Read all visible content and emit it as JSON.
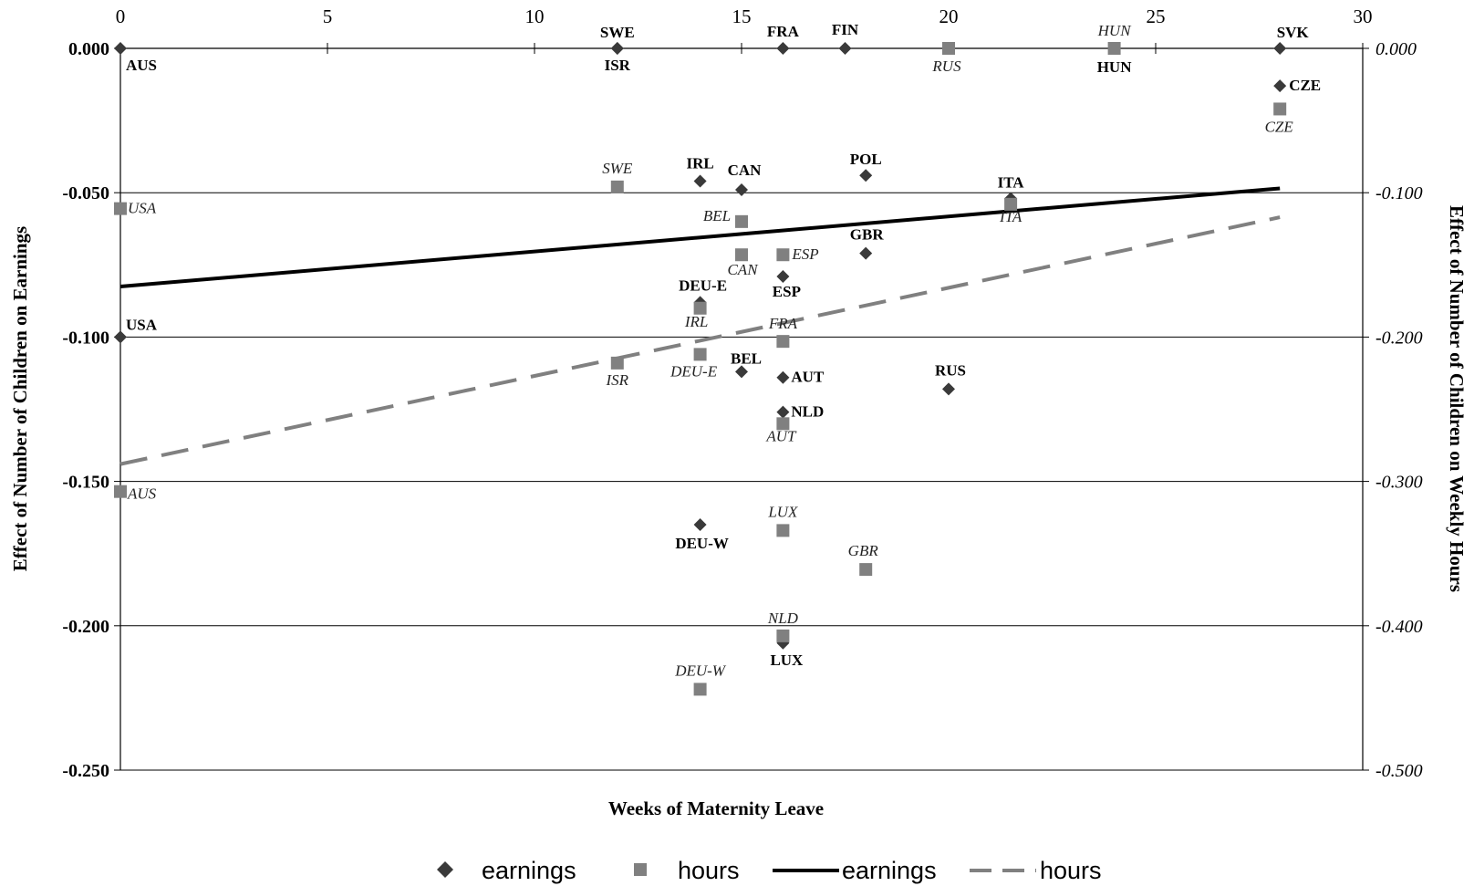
{
  "chart_data": {
    "type": "scatter",
    "xlabel": "Weeks of Maternity Leave",
    "ylabel_left": "Effect of Number of Children on Earnings",
    "ylabel_right": "Effect of Number of Children on Weekly Hours",
    "x_ticks": [
      "0",
      "5",
      "10",
      "15",
      "20",
      "25",
      "30"
    ],
    "y_left_ticks": [
      "0.000",
      "-0.050",
      "-0.100",
      "-0.150",
      "-0.200",
      "-0.250"
    ],
    "y_right_ticks": [
      "0.000",
      "-0.100",
      "-0.200",
      "-0.300",
      "-0.400",
      "-0.500"
    ],
    "xlim": [
      0,
      30
    ],
    "ylim_left": [
      -0.25,
      0
    ],
    "ylim_right": [
      -0.5,
      0
    ],
    "grid": "horizontal",
    "legend_position": "bottom",
    "series": [
      {
        "name": "earnings",
        "axis": "left",
        "marker": "diamond",
        "color": "#3a3a3a",
        "points": [
          {
            "label": "AUS",
            "x": 0,
            "y": 0.0
          },
          {
            "label": "USA",
            "x": 0,
            "y": -0.1
          },
          {
            "label": "SWE",
            "x": 12,
            "y": 0.0
          },
          {
            "label": "ISR",
            "x": 12,
            "y": 0.0
          },
          {
            "label": "FRA",
            "x": 16,
            "y": 0.0
          },
          {
            "label": "FIN",
            "x": 17.5,
            "y": 0.0
          },
          {
            "label": "HUN",
            "x": 24,
            "y": 0.0
          },
          {
            "label": "SVK",
            "x": 28,
            "y": 0.0
          },
          {
            "label": "CZE",
            "x": 28,
            "y": -0.013
          },
          {
            "label": "IRL",
            "x": 14,
            "y": -0.046
          },
          {
            "label": "CAN",
            "x": 15,
            "y": -0.049
          },
          {
            "label": "POL",
            "x": 18,
            "y": -0.044
          },
          {
            "label": "ITA",
            "x": 21.5,
            "y": -0.052
          },
          {
            "label": "GBR",
            "x": 18,
            "y": -0.071
          },
          {
            "label": "ESP",
            "x": 16,
            "y": -0.079
          },
          {
            "label": "DEU-E",
            "x": 14,
            "y": -0.088
          },
          {
            "label": "BEL",
            "x": 15,
            "y": -0.112
          },
          {
            "label": "AUT",
            "x": 16,
            "y": -0.114
          },
          {
            "label": "RUS",
            "x": 20,
            "y": -0.118
          },
          {
            "label": "NLD",
            "x": 16,
            "y": -0.126
          },
          {
            "label": "DEU-W",
            "x": 14,
            "y": -0.165
          },
          {
            "label": "LUX",
            "x": 16,
            "y": -0.206
          }
        ]
      },
      {
        "name": "hours",
        "axis": "right",
        "marker": "square",
        "color": "#808080",
        "points": [
          {
            "label": "USA",
            "x": 0,
            "y": -0.111
          },
          {
            "label": "AUS",
            "x": 0,
            "y": -0.307
          },
          {
            "label": "SWE",
            "x": 12,
            "y": -0.096
          },
          {
            "label": "ISR",
            "x": 12,
            "y": -0.218
          },
          {
            "label": "IRL",
            "x": 14,
            "y": -0.18
          },
          {
            "label": "DEU-E",
            "x": 14,
            "y": -0.212
          },
          {
            "label": "DEU-W",
            "x": 14,
            "y": -0.444
          },
          {
            "label": "BEL",
            "x": 15,
            "y": -0.12
          },
          {
            "label": "CAN",
            "x": 15,
            "y": -0.143
          },
          {
            "label": "ESP",
            "x": 16,
            "y": -0.143
          },
          {
            "label": "FRA",
            "x": 16,
            "y": -0.203
          },
          {
            "label": "AUT",
            "x": 16,
            "y": -0.26
          },
          {
            "label": "LUX",
            "x": 16,
            "y": -0.334
          },
          {
            "label": "NLD",
            "x": 16,
            "y": -0.407
          },
          {
            "label": "GBR",
            "x": 18,
            "y": -0.361
          },
          {
            "label": "RUS",
            "x": 20,
            "y": 0.0
          },
          {
            "label": "HUN",
            "x": 24,
            "y": 0.0
          },
          {
            "label": "ITA",
            "x": 21.5,
            "y": -0.108
          },
          {
            "label": "CZE",
            "x": 28,
            "y": -0.042
          }
        ]
      }
    ],
    "trendlines": [
      {
        "name": "earnings",
        "axis": "left",
        "style": "solid",
        "color": "#000000",
        "x": [
          0,
          28
        ],
        "y": [
          -0.0825,
          -0.0485
        ]
      },
      {
        "name": "hours",
        "axis": "right",
        "style": "dashed",
        "color": "#808080",
        "x": [
          0,
          28
        ],
        "y": [
          -0.288,
          -0.117
        ]
      }
    ],
    "legend": [
      {
        "label": "earnings",
        "kind": "diamond"
      },
      {
        "label": "hours",
        "kind": "square"
      },
      {
        "label": "earnings",
        "kind": "solid-line"
      },
      {
        "label": "hours",
        "kind": "dashed-line"
      }
    ]
  }
}
